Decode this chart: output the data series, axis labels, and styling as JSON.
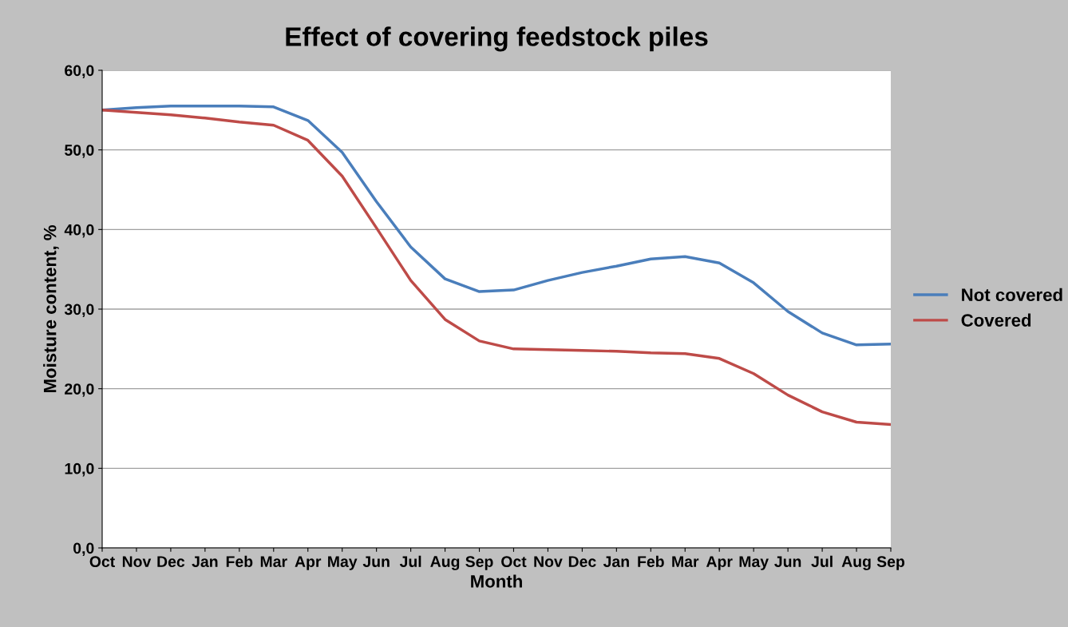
{
  "chart_data": {
    "type": "line",
    "title": "Effect of covering feedstock piles",
    "xlabel": "Month",
    "ylabel": "Moisture content, %",
    "categories": [
      "Oct",
      "Nov",
      "Dec",
      "Jan",
      "Feb",
      "Mar",
      "Apr",
      "May",
      "Jun",
      "Jul",
      "Aug",
      "Sep",
      "Oct",
      "Nov",
      "Dec",
      "Jan",
      "Feb",
      "Mar",
      "Apr",
      "May",
      "Jun",
      "Jul",
      "Aug",
      "Sep"
    ],
    "series": [
      {
        "name": "Not covered",
        "color": "#4a7ebb",
        "values": [
          55.0,
          55.3,
          55.5,
          55.5,
          55.5,
          55.4,
          53.7,
          49.7,
          43.5,
          37.8,
          33.8,
          32.2,
          32.4,
          33.6,
          34.6,
          35.4,
          36.3,
          36.6,
          35.8,
          33.3,
          29.7,
          27.0,
          25.5,
          25.6
        ]
      },
      {
        "name": "Covered",
        "color": "#be4b48",
        "values": [
          55.0,
          54.7,
          54.4,
          54.0,
          53.5,
          53.1,
          51.2,
          46.7,
          40.2,
          33.6,
          28.7,
          26.0,
          25.0,
          24.9,
          24.8,
          24.7,
          24.5,
          24.4,
          23.8,
          21.9,
          19.2,
          17.1,
          15.8,
          15.5
        ]
      }
    ],
    "ylim": [
      0,
      60
    ],
    "yticks": [
      {
        "value": 0,
        "label": "0,0"
      },
      {
        "value": 10,
        "label": "10,0"
      },
      {
        "value": 20,
        "label": "20,0"
      },
      {
        "value": 30,
        "label": "30,0"
      },
      {
        "value": 40,
        "label": "40,0"
      },
      {
        "value": 50,
        "label": "50,0"
      },
      {
        "value": 60,
        "label": "60,0"
      }
    ],
    "grid": "y",
    "legend": "right",
    "marker": "none",
    "line_style": "solid"
  }
}
